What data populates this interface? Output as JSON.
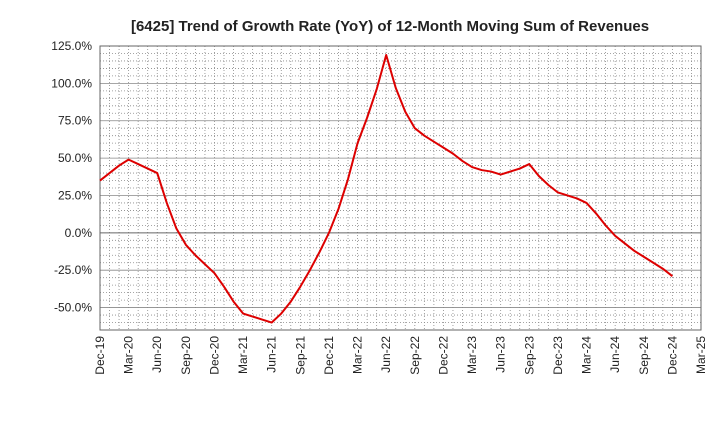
{
  "chart_data": {
    "type": "line",
    "title": "[6425]  Trend of Growth Rate (YoY) of 12-Month Moving Sum of Revenues",
    "xlabel": "",
    "ylabel": "",
    "x_ticks": [
      "Dec-19",
      "Mar-20",
      "Jun-20",
      "Sep-20",
      "Dec-20",
      "Mar-21",
      "Jun-21",
      "Sep-21",
      "Dec-21",
      "Mar-22",
      "Jun-22",
      "Sep-22",
      "Dec-22",
      "Mar-23",
      "Jun-23",
      "Sep-23",
      "Dec-23",
      "Mar-24",
      "Jun-24",
      "Sep-24",
      "Dec-24",
      "Mar-25"
    ],
    "y_ticks": [
      "125.0%",
      "100.0%",
      "75.0%",
      "50.0%",
      "25.0%",
      "0.0%",
      "-25.0%",
      "-50.0%"
    ],
    "y_tick_values": [
      125,
      100,
      75,
      50,
      25,
      0,
      -25,
      -50
    ],
    "ylim": [
      -65,
      125
    ],
    "grid": true,
    "line_color": "#dd0000",
    "series": [
      {
        "x": [
          "Dec-19",
          "Jan-20",
          "Feb-20",
          "Mar-20",
          "Apr-20",
          "May-20",
          "Jun-20",
          "Jul-20",
          "Aug-20",
          "Sep-20",
          "Oct-20",
          "Nov-20",
          "Dec-20",
          "Jan-21",
          "Feb-21",
          "Mar-21",
          "Apr-21",
          "May-21",
          "Jun-21",
          "Jul-21",
          "Aug-21",
          "Sep-21",
          "Oct-21",
          "Nov-21",
          "Dec-21",
          "Jan-22",
          "Feb-22",
          "Mar-22",
          "Apr-22",
          "May-22",
          "Jun-22",
          "Jul-22",
          "Aug-22",
          "Sep-22",
          "Oct-22",
          "Nov-22",
          "Dec-22",
          "Jan-23",
          "Feb-23",
          "Mar-23",
          "Apr-23",
          "May-23",
          "Jun-23",
          "Jul-23",
          "Aug-23",
          "Sep-23",
          "Oct-23",
          "Nov-23",
          "Dec-23",
          "Jan-24",
          "Feb-24",
          "Mar-24",
          "Apr-24",
          "May-24",
          "Jun-24",
          "Jul-24",
          "Aug-24",
          "Sep-24",
          "Oct-24",
          "Nov-24",
          "Dec-24"
        ],
        "values": [
          35,
          40,
          45,
          49,
          46,
          43,
          40,
          20,
          3,
          -8,
          -15,
          -21,
          -27,
          -36,
          -46,
          -54,
          -56,
          -58,
          -60,
          -54,
          -46,
          -36,
          -25,
          -13,
          0,
          16,
          36,
          60,
          77,
          96,
          119,
          97,
          81,
          70,
          65,
          61,
          57,
          53,
          48,
          44,
          42,
          41,
          39,
          41,
          43,
          46,
          38,
          32,
          27,
          25,
          23,
          20,
          13,
          5,
          -2,
          -7,
          -12,
          -16,
          -20,
          -24,
          -29
        ]
      }
    ]
  }
}
